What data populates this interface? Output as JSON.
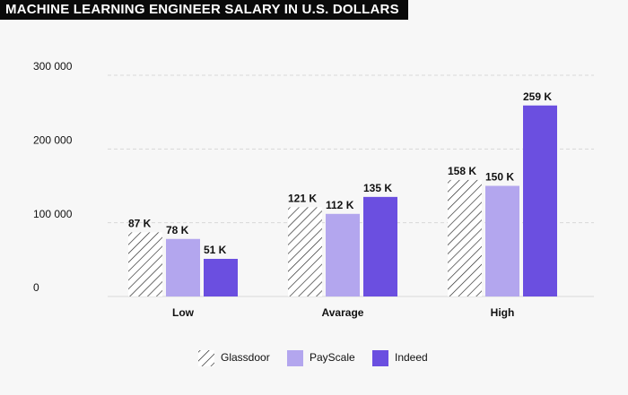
{
  "chart_data": {
    "type": "bar",
    "title": "MACHINE LEARNING ENGINEER SALARY IN U.S. DOLLARS",
    "categories": [
      "Low",
      "Avarage",
      "High"
    ],
    "series": [
      {
        "name": "Glassdoor",
        "color": "#222222",
        "pattern": "hatch",
        "values": [
          87000,
          121000,
          158000
        ],
        "value_labels": [
          "87 K",
          "121 K",
          "158 K"
        ]
      },
      {
        "name": "PayScale",
        "color": "#b3a6ee",
        "values": [
          78000,
          112000,
          150000
        ],
        "value_labels": [
          "78 K",
          "112 K",
          "150 K"
        ]
      },
      {
        "name": "Indeed",
        "color": "#6b4fe0",
        "values": [
          51000,
          135000,
          259000
        ],
        "value_labels": [
          "51 K",
          "135 K",
          "259 K"
        ]
      }
    ],
    "ylim": [
      0,
      300000
    ],
    "yticks": [
      0,
      {
        "value": 100000,
        "label": "100 000"
      },
      {
        "value": 200000,
        "label": "200 000"
      },
      {
        "value": 300000,
        "label": "300 000"
      }
    ],
    "grid": true
  }
}
